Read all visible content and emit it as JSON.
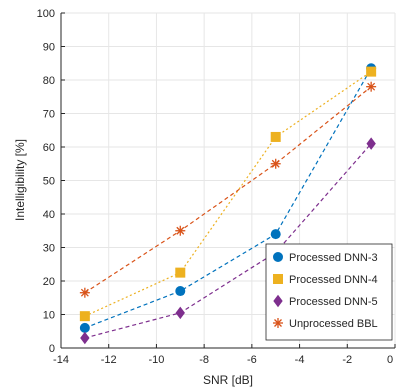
{
  "chart_data": {
    "type": "line",
    "xlabel": "SNR [dB]",
    "ylabel": "Intelligibility [%]",
    "xlim": [
      -14,
      0
    ],
    "ylim": [
      0,
      100
    ],
    "xticks": [
      -14,
      -12,
      -10,
      -8,
      -6,
      -4,
      -2,
      0
    ],
    "yticks": [
      0,
      10,
      20,
      30,
      40,
      50,
      60,
      70,
      80,
      90,
      100
    ],
    "x": [
      -13,
      -9,
      -5,
      -1
    ],
    "grid": true,
    "legend_position": "bottom-right",
    "series": [
      {
        "name": "Processed DNN-3",
        "values": [
          6,
          17,
          34,
          83.5
        ],
        "color": "#0072BD",
        "marker": "circle",
        "line": "dashed"
      },
      {
        "name": "Processed DNN-4",
        "values": [
          9.5,
          22.5,
          63,
          82.5
        ],
        "color": "#EDB120",
        "marker": "square",
        "line": "dotted"
      },
      {
        "name": "Processed DNN-5",
        "values": [
          3,
          10.5,
          28.5,
          61
        ],
        "color": "#7E2F8E",
        "marker": "diamond",
        "line": "dashed"
      },
      {
        "name": "Unprocessed BBL",
        "values": [
          16.5,
          35,
          55,
          78
        ],
        "color": "#D95319",
        "marker": "asterisk",
        "line": "dashed"
      }
    ]
  }
}
